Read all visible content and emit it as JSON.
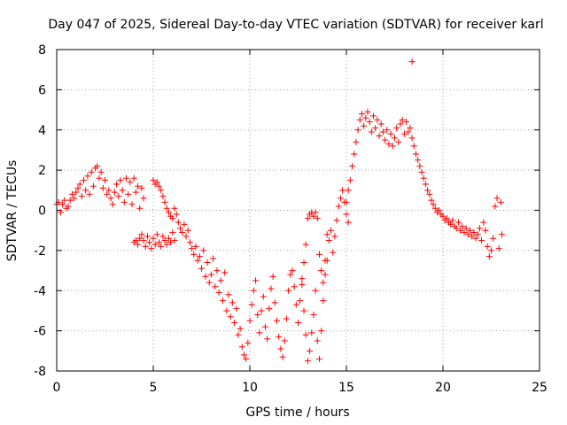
{
  "chart_data": {
    "type": "scatter",
    "title": "Day 047 of 2025, Sidereal Day-to-day VTEC variation (SDTVAR) for receiver karl",
    "xlabel": "GPS time / hours",
    "ylabel": "SDTVAR / TECUs",
    "xlim": [
      0,
      25
    ],
    "ylim": [
      -8,
      8
    ],
    "xticks": [
      0,
      5,
      10,
      15,
      20,
      25
    ],
    "yticks": [
      -8,
      -6,
      -4,
      -2,
      0,
      2,
      4,
      6,
      8
    ],
    "grid": true,
    "marker": "+",
    "color": "#ff0000",
    "series": [
      {
        "name": "SDTVAR",
        "points": [
          [
            0.0,
            0.3
          ],
          [
            0.1,
            0.4
          ],
          [
            0.2,
            -0.1
          ],
          [
            0.3,
            0.3
          ],
          [
            0.4,
            0.5
          ],
          [
            0.5,
            0.1
          ],
          [
            0.6,
            0.2
          ],
          [
            0.7,
            0.5
          ],
          [
            0.8,
            0.8
          ],
          [
            0.9,
            0.6
          ],
          [
            1.0,
            0.9
          ],
          [
            1.1,
            1.1
          ],
          [
            1.2,
            1.3
          ],
          [
            1.3,
            0.7
          ],
          [
            1.4,
            1.5
          ],
          [
            1.5,
            1.0
          ],
          [
            1.6,
            1.7
          ],
          [
            1.7,
            0.8
          ],
          [
            1.8,
            1.9
          ],
          [
            1.9,
            1.2
          ],
          [
            2.0,
            2.1
          ],
          [
            2.1,
            2.2
          ],
          [
            2.2,
            1.6
          ],
          [
            2.3,
            1.9
          ],
          [
            2.4,
            1.1
          ],
          [
            2.5,
            1.5
          ],
          [
            2.6,
            0.8
          ],
          [
            2.7,
            1.0
          ],
          [
            2.8,
            0.6
          ],
          [
            2.9,
            0.3
          ],
          [
            3.0,
            0.9
          ],
          [
            3.1,
            1.3
          ],
          [
            3.2,
            0.7
          ],
          [
            3.3,
            1.5
          ],
          [
            3.4,
            1.0
          ],
          [
            3.5,
            0.4
          ],
          [
            3.6,
            1.6
          ],
          [
            3.7,
            0.8
          ],
          [
            3.8,
            1.4
          ],
          [
            3.9,
            0.3
          ],
          [
            4.0,
            1.6
          ],
          [
            4.1,
            0.9
          ],
          [
            4.2,
            1.2
          ],
          [
            4.3,
            0.1
          ],
          [
            4.4,
            1.1
          ],
          [
            4.5,
            0.6
          ],
          [
            4.0,
            -1.6
          ],
          [
            4.1,
            -1.5
          ],
          [
            4.2,
            -1.7
          ],
          [
            4.3,
            -1.4
          ],
          [
            4.4,
            -1.2
          ],
          [
            4.5,
            -1.5
          ],
          [
            4.6,
            -1.8
          ],
          [
            4.7,
            -1.3
          ],
          [
            4.8,
            -1.6
          ],
          [
            4.9,
            -1.9
          ],
          [
            5.0,
            -1.4
          ],
          [
            5.1,
            -1.7
          ],
          [
            5.2,
            -1.2
          ],
          [
            5.3,
            -1.6
          ],
          [
            5.4,
            -1.8
          ],
          [
            5.5,
            -1.3
          ],
          [
            5.6,
            -1.5
          ],
          [
            5.7,
            -1.7
          ],
          [
            5.8,
            -1.4
          ],
          [
            5.9,
            -1.6
          ],
          [
            6.0,
            -1.1
          ],
          [
            6.1,
            -1.5
          ],
          [
            5.0,
            1.5
          ],
          [
            5.1,
            1.3
          ],
          [
            5.2,
            1.4
          ],
          [
            5.3,
            1.2
          ],
          [
            5.4,
            1.0
          ],
          [
            5.5,
            0.7
          ],
          [
            5.6,
            0.4
          ],
          [
            5.7,
            0.1
          ],
          [
            5.8,
            -0.1
          ],
          [
            5.9,
            -0.3
          ],
          [
            6.0,
            -0.4
          ],
          [
            6.1,
            0.1
          ],
          [
            6.2,
            -0.2
          ],
          [
            6.3,
            -0.6
          ],
          [
            6.4,
            -0.9
          ],
          [
            6.5,
            -1.1
          ],
          [
            6.6,
            -0.7
          ],
          [
            6.7,
            -1.3
          ],
          [
            6.8,
            -1.0
          ],
          [
            6.9,
            -1.6
          ],
          [
            7.0,
            -1.9
          ],
          [
            7.1,
            -2.2
          ],
          [
            7.2,
            -1.8
          ],
          [
            7.3,
            -2.5
          ],
          [
            7.4,
            -2.3
          ],
          [
            7.5,
            -2.9
          ],
          [
            7.6,
            -2.0
          ],
          [
            7.7,
            -3.3
          ],
          [
            7.8,
            -2.6
          ],
          [
            7.9,
            -3.6
          ],
          [
            8.0,
            -3.2
          ],
          [
            8.1,
            -2.4
          ],
          [
            8.2,
            -3.8
          ],
          [
            8.3,
            -3.0
          ],
          [
            8.4,
            -4.1
          ],
          [
            8.5,
            -3.5
          ],
          [
            8.6,
            -4.5
          ],
          [
            8.7,
            -3.1
          ],
          [
            8.8,
            -5.0
          ],
          [
            8.9,
            -4.2
          ],
          [
            9.0,
            -5.3
          ],
          [
            9.1,
            -4.6
          ],
          [
            9.2,
            -5.6
          ],
          [
            9.3,
            -4.9
          ],
          [
            9.4,
            -6.2
          ],
          [
            9.5,
            -5.9
          ],
          [
            9.6,
            -6.8
          ],
          [
            9.7,
            -7.2
          ],
          [
            9.8,
            -7.4
          ],
          [
            9.9,
            -6.6
          ],
          [
            10.0,
            -5.5
          ],
          [
            10.1,
            -4.7
          ],
          [
            10.2,
            -4.0
          ],
          [
            10.3,
            -3.5
          ],
          [
            10.4,
            -5.2
          ],
          [
            10.5,
            -6.1
          ],
          [
            10.6,
            -5.0
          ],
          [
            10.7,
            -4.3
          ],
          [
            10.8,
            -5.8
          ],
          [
            10.9,
            -6.4
          ],
          [
            11.0,
            -4.9
          ],
          [
            11.1,
            -3.9
          ],
          [
            11.2,
            -3.3
          ],
          [
            11.3,
            -4.6
          ],
          [
            11.4,
            -5.5
          ],
          [
            11.5,
            -6.3
          ],
          [
            11.6,
            -6.9
          ],
          [
            11.7,
            -7.3
          ],
          [
            11.8,
            -6.5
          ],
          [
            11.9,
            -5.4
          ],
          [
            12.0,
            -4.0
          ],
          [
            12.1,
            -3.2
          ],
          [
            12.2,
            -3.0
          ],
          [
            12.3,
            -3.8
          ],
          [
            12.4,
            -4.7
          ],
          [
            12.5,
            -5.6
          ],
          [
            12.6,
            -4.5
          ],
          [
            12.7,
            -3.7
          ],
          [
            12.8,
            -5.0
          ],
          [
            12.9,
            -6.2
          ],
          [
            13.0,
            -7.5
          ],
          [
            13.1,
            -7.0
          ],
          [
            13.2,
            -6.1
          ],
          [
            13.3,
            -5.2
          ],
          [
            13.4,
            -4.0
          ],
          [
            13.5,
            -6.5
          ],
          [
            13.6,
            -7.4
          ],
          [
            13.7,
            -6.0
          ],
          [
            13.8,
            -4.5
          ],
          [
            13.9,
            -3.2
          ],
          [
            14.0,
            -2.5
          ],
          [
            14.1,
            -1.5
          ],
          [
            14.2,
            -1.0
          ],
          [
            14.3,
            -2.1
          ],
          [
            14.4,
            -1.3
          ],
          [
            14.5,
            -0.5
          ],
          [
            14.6,
            0.2
          ],
          [
            14.7,
            0.6
          ],
          [
            14.8,
            1.0
          ],
          [
            14.9,
            0.4
          ],
          [
            15.0,
            -0.2
          ],
          [
            15.1,
            -0.6
          ],
          [
            12.7,
            -3.4
          ],
          [
            12.8,
            -2.6
          ],
          [
            12.9,
            -1.7
          ],
          [
            13.0,
            -0.4
          ],
          [
            13.1,
            -0.2
          ],
          [
            13.2,
            -0.1
          ],
          [
            13.3,
            -0.3
          ],
          [
            13.4,
            -0.1
          ],
          [
            13.5,
            -0.4
          ],
          [
            13.6,
            -2.2
          ],
          [
            13.7,
            -3.0
          ],
          [
            13.8,
            -3.6
          ],
          [
            13.9,
            -2.5
          ],
          [
            14.0,
            -1.2
          ],
          [
            15.0,
            0.4
          ],
          [
            15.1,
            1.0
          ],
          [
            15.2,
            1.5
          ],
          [
            15.3,
            2.2
          ],
          [
            15.4,
            2.8
          ],
          [
            15.5,
            3.4
          ],
          [
            15.6,
            4.0
          ],
          [
            15.7,
            4.5
          ],
          [
            15.8,
            4.8
          ],
          [
            15.9,
            4.2
          ],
          [
            16.0,
            4.6
          ],
          [
            16.1,
            4.9
          ],
          [
            16.2,
            4.4
          ],
          [
            16.3,
            3.9
          ],
          [
            16.4,
            4.7
          ],
          [
            16.5,
            4.1
          ],
          [
            16.6,
            4.5
          ],
          [
            16.7,
            3.7
          ],
          [
            16.8,
            4.3
          ],
          [
            16.9,
            3.9
          ],
          [
            17.0,
            3.5
          ],
          [
            17.1,
            4.0
          ],
          [
            17.2,
            3.3
          ],
          [
            17.3,
            3.8
          ],
          [
            17.4,
            3.2
          ],
          [
            17.5,
            3.6
          ],
          [
            17.6,
            4.1
          ],
          [
            17.7,
            3.4
          ],
          [
            17.8,
            4.3
          ],
          [
            17.9,
            4.5
          ],
          [
            18.0,
            3.8
          ],
          [
            18.1,
            4.4
          ],
          [
            18.2,
            3.9
          ],
          [
            18.3,
            4.1
          ],
          [
            18.4,
            3.6
          ],
          [
            18.5,
            3.2
          ],
          [
            18.6,
            2.8
          ],
          [
            18.7,
            2.5
          ],
          [
            18.8,
            2.2
          ],
          [
            18.9,
            1.9
          ],
          [
            19.0,
            1.6
          ],
          [
            19.1,
            1.3
          ],
          [
            19.2,
            1.0
          ],
          [
            19.3,
            0.8
          ],
          [
            19.4,
            0.5
          ],
          [
            19.5,
            0.3
          ],
          [
            19.6,
            0.1
          ],
          [
            19.7,
            -0.1
          ],
          [
            19.8,
            0.0
          ],
          [
            19.9,
            -0.2
          ],
          [
            20.0,
            -0.3
          ],
          [
            20.1,
            -0.5
          ],
          [
            20.2,
            -0.4
          ],
          [
            20.3,
            -0.6
          ],
          [
            20.4,
            -0.7
          ],
          [
            20.5,
            -0.5
          ],
          [
            20.6,
            -0.8
          ],
          [
            20.7,
            -0.9
          ],
          [
            20.8,
            -0.6
          ],
          [
            20.9,
            -1.0
          ],
          [
            21.0,
            -0.8
          ],
          [
            21.1,
            -1.1
          ],
          [
            21.2,
            -0.9
          ],
          [
            21.3,
            -1.2
          ],
          [
            21.4,
            -1.0
          ],
          [
            21.5,
            -1.3
          ],
          [
            21.6,
            -1.1
          ],
          [
            21.7,
            -1.4
          ],
          [
            21.8,
            -1.2
          ],
          [
            21.9,
            -0.9
          ],
          [
            22.0,
            -1.5
          ],
          [
            22.1,
            -0.6
          ],
          [
            22.2,
            -1.0
          ],
          [
            22.3,
            -1.8
          ],
          [
            22.4,
            -2.3
          ],
          [
            22.5,
            -2.0
          ],
          [
            22.6,
            -1.4
          ],
          [
            22.7,
            0.2
          ],
          [
            22.8,
            0.6
          ],
          [
            22.9,
            -1.9
          ],
          [
            23.0,
            0.4
          ],
          [
            23.05,
            -1.2
          ],
          [
            18.4,
            7.4
          ]
        ]
      }
    ]
  }
}
